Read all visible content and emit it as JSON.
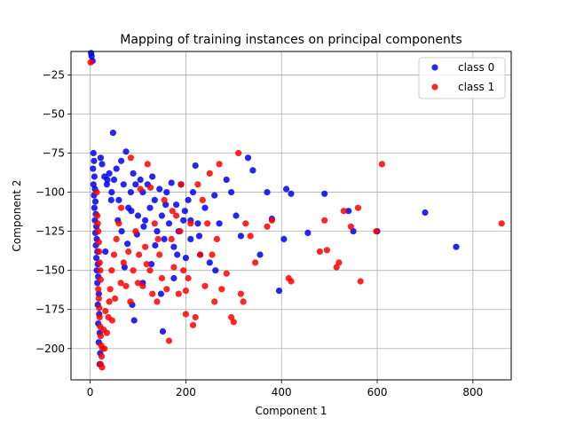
{
  "chart_data": {
    "type": "scatter",
    "title": "Mapping of training instances on principal components",
    "xlabel": "Component 1",
    "ylabel": "Component 2",
    "xlim": [
      -40,
      880
    ],
    "ylim": [
      -220,
      -10
    ],
    "xticks": [
      0,
      200,
      400,
      600,
      800
    ],
    "yticks": [
      -200,
      -175,
      -150,
      -125,
      -100,
      -75,
      -50,
      -25
    ],
    "grid": true,
    "legend_position": "top-right",
    "series": [
      {
        "name": "class 0",
        "color": "#0000ee",
        "points": [
          [
            2,
            -11
          ],
          [
            3,
            -13
          ],
          [
            5,
            -16
          ],
          [
            7,
            -75
          ],
          [
            8,
            -80
          ],
          [
            6,
            -85
          ],
          [
            9,
            -90
          ],
          [
            7,
            -95
          ],
          [
            10,
            -98
          ],
          [
            8,
            -102
          ],
          [
            11,
            -106
          ],
          [
            9,
            -110
          ],
          [
            12,
            -114
          ],
          [
            10,
            -118
          ],
          [
            13,
            -122
          ],
          [
            11,
            -126
          ],
          [
            14,
            -130
          ],
          [
            12,
            -134
          ],
          [
            15,
            -138
          ],
          [
            13,
            -142
          ],
          [
            16,
            -146
          ],
          [
            14,
            -150
          ],
          [
            17,
            -154
          ],
          [
            15,
            -158
          ],
          [
            18,
            -165
          ],
          [
            16,
            -172
          ],
          [
            19,
            -178
          ],
          [
            17,
            -184
          ],
          [
            20,
            -190
          ],
          [
            18,
            -196
          ],
          [
            21,
            -203
          ],
          [
            20,
            -210
          ],
          [
            22,
            -78
          ],
          [
            25,
            -82
          ],
          [
            30,
            -90
          ],
          [
            35,
            -95
          ],
          [
            40,
            -88
          ],
          [
            45,
            -100
          ],
          [
            50,
            -92
          ],
          [
            55,
            -85
          ],
          [
            60,
            -105
          ],
          [
            65,
            -80
          ],
          [
            70,
            -95
          ],
          [
            75,
            -74
          ],
          [
            80,
            -110
          ],
          [
            85,
            -100
          ],
          [
            90,
            -88
          ],
          [
            95,
            -95
          ],
          [
            100,
            -115
          ],
          [
            105,
            -92
          ],
          [
            110,
            -100
          ],
          [
            115,
            -118
          ],
          [
            120,
            -95
          ],
          [
            125,
            -110
          ],
          [
            130,
            -90
          ],
          [
            135,
            -105
          ],
          [
            140,
            -125
          ],
          [
            145,
            -98
          ],
          [
            150,
            -115
          ],
          [
            155,
            -130
          ],
          [
            160,
            -100
          ],
          [
            165,
            -120
          ],
          [
            170,
            -94
          ],
          [
            175,
            -135
          ],
          [
            180,
            -108
          ],
          [
            185,
            -125
          ],
          [
            190,
            -95
          ],
          [
            195,
            -118
          ],
          [
            200,
            -142
          ],
          [
            205,
            -105
          ],
          [
            210,
            -130
          ],
          [
            215,
            -100
          ],
          [
            220,
            -83
          ],
          [
            225,
            -120
          ],
          [
            230,
            -140
          ],
          [
            240,
            -110
          ],
          [
            250,
            -145
          ],
          [
            260,
            -102
          ],
          [
            270,
            -120
          ],
          [
            285,
            -92
          ],
          [
            295,
            -100
          ],
          [
            305,
            -115
          ],
          [
            315,
            -128
          ],
          [
            330,
            -78
          ],
          [
            340,
            -86
          ],
          [
            355,
            -140
          ],
          [
            370,
            -100
          ],
          [
            380,
            -117
          ],
          [
            395,
            -163
          ],
          [
            405,
            -130
          ],
          [
            410,
            -98
          ],
          [
            420,
            -101
          ],
          [
            455,
            -126
          ],
          [
            490,
            -101
          ],
          [
            540,
            -112
          ],
          [
            550,
            -125
          ],
          [
            600,
            -125
          ],
          [
            700,
            -113
          ],
          [
            765,
            -135
          ],
          [
            48,
            -62
          ],
          [
            32,
            -138
          ],
          [
            72,
            -148
          ],
          [
            88,
            -172
          ],
          [
            92,
            -182
          ],
          [
            110,
            -158
          ],
          [
            128,
            -146
          ],
          [
            148,
            -165
          ],
          [
            152,
            -189
          ],
          [
            175,
            -155
          ],
          [
            210,
            -118
          ],
          [
            262,
            -150
          ],
          [
            36,
            -92
          ],
          [
            44,
            -105
          ],
          [
            58,
            -118
          ],
          [
            66,
            -125
          ],
          [
            78,
            -133
          ],
          [
            86,
            -112
          ],
          [
            98,
            -127
          ],
          [
            112,
            -122
          ],
          [
            136,
            -134
          ],
          [
            158,
            -108
          ],
          [
            182,
            -140
          ],
          [
            198,
            -112
          ],
          [
            228,
            -128
          ]
        ]
      },
      {
        "name": "class 1",
        "color": "#ff0000",
        "points": [
          [
            1,
            -17
          ],
          [
            14,
            -100
          ],
          [
            15,
            -115
          ],
          [
            16,
            -120
          ],
          [
            17,
            -125
          ],
          [
            18,
            -132
          ],
          [
            19,
            -138
          ],
          [
            20,
            -145
          ],
          [
            21,
            -150
          ],
          [
            22,
            -156
          ],
          [
            17,
            -162
          ],
          [
            18,
            -168
          ],
          [
            19,
            -174
          ],
          [
            20,
            -180
          ],
          [
            21,
            -186
          ],
          [
            22,
            -192
          ],
          [
            23,
            -198
          ],
          [
            24,
            -205
          ],
          [
            22,
            -210
          ],
          [
            25,
            -212
          ],
          [
            30,
            -200
          ],
          [
            35,
            -190
          ],
          [
            38,
            -180
          ],
          [
            40,
            -170
          ],
          [
            42,
            -162
          ],
          [
            45,
            -150
          ],
          [
            50,
            -140
          ],
          [
            55,
            -130
          ],
          [
            60,
            -120
          ],
          [
            65,
            -110
          ],
          [
            70,
            -145
          ],
          [
            75,
            -160
          ],
          [
            80,
            -138
          ],
          [
            85,
            -78
          ],
          [
            90,
            -150
          ],
          [
            95,
            -125
          ],
          [
            100,
            -158
          ],
          [
            105,
            -98
          ],
          [
            110,
            -160
          ],
          [
            115,
            -135
          ],
          [
            120,
            -82
          ],
          [
            125,
            -150
          ],
          [
            130,
            -165
          ],
          [
            135,
            -120
          ],
          [
            140,
            -170
          ],
          [
            145,
            -140
          ],
          [
            150,
            -155
          ],
          [
            155,
            -105
          ],
          [
            160,
            -162
          ],
          [
            165,
            -195
          ],
          [
            170,
            -130
          ],
          [
            175,
            -148
          ],
          [
            180,
            -115
          ],
          [
            185,
            -165
          ],
          [
            190,
            -95
          ],
          [
            195,
            -150
          ],
          [
            200,
            -178
          ],
          [
            205,
            -155
          ],
          [
            210,
            -120
          ],
          [
            215,
            -185
          ],
          [
            220,
            -180
          ],
          [
            225,
            -95
          ],
          [
            230,
            -140
          ],
          [
            235,
            -105
          ],
          [
            240,
            -160
          ],
          [
            245,
            -120
          ],
          [
            250,
            -88
          ],
          [
            255,
            -140
          ],
          [
            260,
            -170
          ],
          [
            265,
            -130
          ],
          [
            270,
            -82
          ],
          [
            275,
            -162
          ],
          [
            285,
            -152
          ],
          [
            295,
            -180
          ],
          [
            300,
            -183
          ],
          [
            310,
            -75
          ],
          [
            315,
            -165
          ],
          [
            320,
            -170
          ],
          [
            325,
            -120
          ],
          [
            335,
            -128
          ],
          [
            345,
            -145
          ],
          [
            370,
            -122
          ],
          [
            380,
            -118
          ],
          [
            415,
            -155
          ],
          [
            420,
            -157
          ],
          [
            480,
            -138
          ],
          [
            490,
            -118
          ],
          [
            495,
            -137
          ],
          [
            515,
            -148
          ],
          [
            520,
            -145
          ],
          [
            530,
            -112
          ],
          [
            545,
            -122
          ],
          [
            560,
            -110
          ],
          [
            565,
            -157
          ],
          [
            598,
            -125
          ],
          [
            610,
            -82
          ],
          [
            860,
            -120
          ],
          [
            200,
            -163
          ],
          [
            188,
            -125
          ],
          [
            172,
            -112
          ],
          [
            142,
            -130
          ],
          [
            126,
            -97
          ],
          [
            118,
            -146
          ],
          [
            102,
            -140
          ],
          [
            84,
            -170
          ],
          [
            64,
            -158
          ],
          [
            52,
            -168
          ],
          [
            46,
            -182
          ],
          [
            26,
            -200
          ],
          [
            28,
            -188
          ],
          [
            32,
            -176
          ]
        ]
      }
    ]
  }
}
